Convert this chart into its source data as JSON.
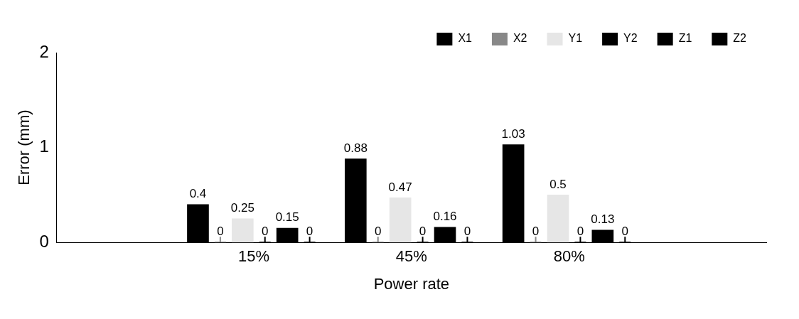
{
  "chart_data": {
    "type": "bar",
    "categories": [
      "15%",
      "45%",
      "80%"
    ],
    "xlabel": "Power rate",
    "ylabel": "Error (mm)",
    "ylim": [
      0,
      2
    ],
    "yticks": [
      0,
      1,
      2
    ],
    "grid": false,
    "legend": "top right",
    "data_labels": true,
    "series": [
      {
        "name": "X1",
        "color": "#000000",
        "values": [
          0.4,
          0.88,
          1.03
        ]
      },
      {
        "name": "X2",
        "type": "scatter",
        "marker": "cross",
        "color": "#888888",
        "values": [
          0,
          0,
          0
        ]
      },
      {
        "name": "Y1",
        "color": "#e6e6e6",
        "values": [
          0.25,
          0.47,
          0.5
        ]
      },
      {
        "name": "Y2",
        "type": "scatter",
        "marker": "cross",
        "color": "#000000",
        "values": [
          0,
          0,
          0
        ]
      },
      {
        "name": "Z1",
        "color": "#000000",
        "values": [
          0.15,
          0.16,
          0.13
        ]
      },
      {
        "name": "Z2",
        "type": "scatter",
        "marker": "cross",
        "color": "#000000",
        "values": [
          0,
          0,
          0
        ]
      }
    ]
  }
}
